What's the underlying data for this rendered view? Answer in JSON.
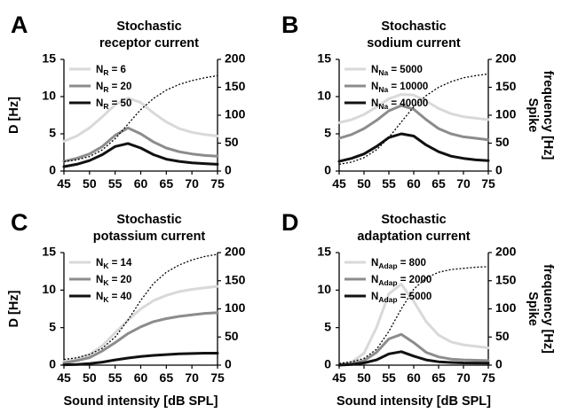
{
  "chart_data": [
    {
      "panel": "A",
      "type": "line",
      "title_lines": [
        "Stochastic",
        "receptor current"
      ],
      "ylabel": "D [Hz]",
      "xlabel": "",
      "right_ylabel": [],
      "xlim": [
        45,
        75
      ],
      "ylim": [
        0,
        15
      ],
      "right_ylim": [
        0,
        200
      ],
      "xticks": [
        45,
        50,
        55,
        60,
        65,
        70,
        75
      ],
      "yticks": [
        0,
        5,
        10,
        15
      ],
      "right_yticks": [
        0,
        50,
        100,
        150,
        200
      ],
      "legend": "top-left",
      "x": [
        45,
        47.5,
        50,
        52.5,
        55,
        57.5,
        60,
        62.5,
        65,
        67.5,
        70,
        72.5,
        75
      ],
      "series": [
        {
          "name": "N",
          "sub": "R",
          "value": "6",
          "color": "#d9d9d9",
          "values": [
            4.0,
            4.7,
            5.8,
            7.3,
            8.9,
            9.8,
            9.2,
            7.8,
            6.6,
            5.7,
            5.2,
            4.9,
            4.7
          ]
        },
        {
          "name": "N",
          "sub": "R",
          "value": "20",
          "color": "#8c8c8c",
          "values": [
            1.3,
            1.7,
            2.3,
            3.3,
            4.8,
            5.8,
            5.0,
            3.9,
            3.1,
            2.6,
            2.3,
            2.1,
            2.0
          ]
        },
        {
          "name": "N",
          "sub": "R",
          "value": "50",
          "color": "#111111",
          "values": [
            0.6,
            0.9,
            1.4,
            2.2,
            3.3,
            3.7,
            3.1,
            2.2,
            1.6,
            1.3,
            1.1,
            1.0,
            0.9
          ]
        }
      ],
      "spike_frequency": [
        17,
        20,
        26,
        38,
        58,
        84,
        110,
        130,
        145,
        155,
        162,
        167,
        171
      ]
    },
    {
      "panel": "B",
      "type": "line",
      "title_lines": [
        "Stochastic",
        "sodium current"
      ],
      "ylabel": "",
      "xlabel": "",
      "right_ylabel": [
        "Spike",
        "frequency [Hz]"
      ],
      "xlim": [
        45,
        75
      ],
      "ylim": [
        0,
        15
      ],
      "right_ylim": [
        0,
        200
      ],
      "xticks": [
        45,
        50,
        55,
        60,
        65,
        70,
        75
      ],
      "yticks": [
        0,
        5,
        10,
        15
      ],
      "right_yticks": [
        0,
        50,
        100,
        150,
        200
      ],
      "legend": "top-left",
      "x": [
        45,
        47.5,
        50,
        52.5,
        55,
        57.5,
        60,
        62.5,
        65,
        67.5,
        70,
        72.5,
        75
      ],
      "series": [
        {
          "name": "N",
          "sub": "Na",
          "value": "5000",
          "color": "#d9d9d9",
          "values": [
            6.5,
            6.9,
            7.6,
            8.6,
            9.7,
            10.3,
            10.2,
            9.4,
            8.4,
            7.7,
            7.3,
            7.1,
            6.9
          ]
        },
        {
          "name": "N",
          "sub": "Na",
          "value": "10000",
          "color": "#8c8c8c",
          "values": [
            4.4,
            4.9,
            5.7,
            6.8,
            8.1,
            8.8,
            8.3,
            6.9,
            5.7,
            5.0,
            4.6,
            4.4,
            4.2
          ]
        },
        {
          "name": "N",
          "sub": "Na",
          "value": "40000",
          "color": "#111111",
          "values": [
            1.3,
            1.7,
            2.3,
            3.3,
            4.5,
            5.0,
            4.7,
            3.5,
            2.6,
            2.0,
            1.7,
            1.5,
            1.4
          ]
        }
      ],
      "spike_frequency": [
        12,
        16,
        24,
        38,
        60,
        88,
        115,
        135,
        150,
        160,
        167,
        171,
        174
      ]
    },
    {
      "panel": "C",
      "type": "line",
      "title_lines": [
        "Stochastic",
        "potassium current"
      ],
      "ylabel": "D [Hz]",
      "xlabel": "Sound intensity [dB SPL]",
      "right_ylabel": [],
      "xlim": [
        45,
        75
      ],
      "ylim": [
        0,
        15
      ],
      "right_ylim": [
        0,
        200
      ],
      "xticks": [
        45,
        50,
        55,
        60,
        65,
        70,
        75
      ],
      "yticks": [
        0,
        5,
        10,
        15
      ],
      "right_yticks": [
        0,
        50,
        100,
        150,
        200
      ],
      "legend": "top-left",
      "x": [
        45,
        47.5,
        50,
        52.5,
        55,
        57.5,
        60,
        62.5,
        65,
        67.5,
        70,
        72.5,
        75
      ],
      "series": [
        {
          "name": "N",
          "sub": "K",
          "value": "14",
          "color": "#d9d9d9",
          "values": [
            0.5,
            0.8,
            1.4,
            2.6,
            4.3,
            6.0,
            7.5,
            8.6,
            9.3,
            9.8,
            10.1,
            10.3,
            10.5
          ]
        },
        {
          "name": "N",
          "sub": "K",
          "value": "20",
          "color": "#8c8c8c",
          "values": [
            0.3,
            0.6,
            1.0,
            1.9,
            3.0,
            4.2,
            5.1,
            5.8,
            6.2,
            6.5,
            6.7,
            6.9,
            7.0
          ]
        },
        {
          "name": "N",
          "sub": "K",
          "value": "40",
          "color": "#111111",
          "values": [
            0.05,
            0.1,
            0.2,
            0.4,
            0.7,
            0.95,
            1.15,
            1.3,
            1.4,
            1.5,
            1.55,
            1.6,
            1.6
          ]
        }
      ],
      "spike_frequency": [
        10,
        13,
        19,
        30,
        50,
        80,
        115,
        145,
        165,
        178,
        187,
        193,
        197
      ]
    },
    {
      "panel": "D",
      "type": "line",
      "title_lines": [
        "Stochastic",
        "adaptation current"
      ],
      "ylabel": "",
      "xlabel": "Sound intensity [dB SPL]",
      "right_ylabel": [
        "Spike",
        "frequency [Hz]"
      ],
      "xlim": [
        45,
        75
      ],
      "ylim": [
        0,
        15
      ],
      "right_ylim": [
        0,
        200
      ],
      "xticks": [
        45,
        50,
        55,
        60,
        65,
        70,
        75
      ],
      "yticks": [
        0,
        5,
        10,
        15
      ],
      "right_yticks": [
        0,
        50,
        100,
        150,
        200
      ],
      "legend": "top-left",
      "x": [
        45,
        47.5,
        50,
        52.5,
        55,
        57.5,
        60,
        62.5,
        65,
        67.5,
        70,
        72.5,
        75
      ],
      "series": [
        {
          "name": "N",
          "sub": "Adap",
          "value": "800",
          "color": "#d9d9d9",
          "values": [
            0.1,
            0.4,
            1.6,
            5.0,
            9.5,
            10.8,
            8.5,
            5.8,
            4.0,
            3.1,
            2.7,
            2.5,
            2.3
          ]
        },
        {
          "name": "N",
          "sub": "Adap",
          "value": "2000",
          "color": "#8c8c8c",
          "values": [
            0.05,
            0.2,
            0.6,
            1.7,
            3.5,
            4.1,
            3.0,
            1.7,
            1.1,
            0.8,
            0.7,
            0.65,
            0.6
          ]
        },
        {
          "name": "N",
          "sub": "Adap",
          "value": "5000",
          "color": "#111111",
          "values": [
            0.0,
            0.1,
            0.3,
            0.7,
            1.5,
            1.8,
            1.2,
            0.7,
            0.45,
            0.35,
            0.3,
            0.28,
            0.26
          ]
        }
      ],
      "spike_frequency": [
        3,
        6,
        12,
        28,
        60,
        100,
        135,
        155,
        165,
        170,
        172,
        174,
        175
      ]
    }
  ]
}
